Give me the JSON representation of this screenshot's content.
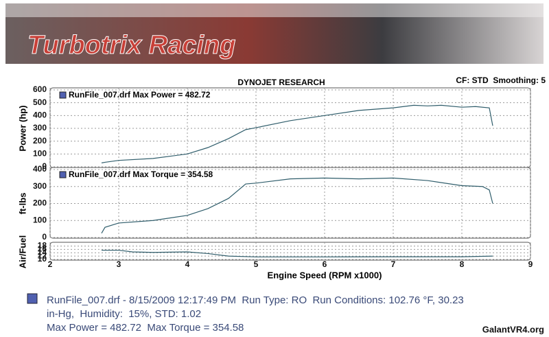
{
  "header": {
    "brand": "Turbotrix Racing",
    "title": "DYNOJET RESEARCH",
    "settings": "CF: STD  Smoothing: 5"
  },
  "chart_data": [
    {
      "type": "line",
      "y_label": "Power (hp)",
      "series": [
        {
          "name": "RunFile_007.drf Max Power = 482.72",
          "color": "#2f5d6b",
          "x": [
            2.75,
            2.8,
            3.0,
            3.5,
            4.0,
            4.3,
            4.6,
            4.85,
            5.0,
            5.5,
            6.0,
            6.5,
            7.0,
            7.3,
            7.5,
            7.7,
            8.0,
            8.2,
            8.4,
            8.45
          ],
          "values": [
            30,
            35,
            50,
            65,
            100,
            150,
            220,
            290,
            305,
            360,
            400,
            440,
            460,
            480,
            475,
            480,
            465,
            470,
            460,
            320
          ]
        }
      ],
      "ylim": [
        0,
        600
      ],
      "yticks": [
        0,
        100,
        200,
        300,
        400,
        500,
        600
      ]
    },
    {
      "type": "line",
      "y_label": "ft-lbs",
      "series": [
        {
          "name": "RunFile_007.drf Max Torque = 354.58",
          "color": "#2f5d6b",
          "x": [
            2.75,
            2.8,
            3.0,
            3.5,
            4.0,
            4.3,
            4.6,
            4.85,
            5.0,
            5.5,
            6.0,
            6.5,
            7.0,
            7.5,
            8.0,
            8.3,
            8.4,
            8.45
          ],
          "values": [
            25,
            60,
            85,
            100,
            130,
            170,
            230,
            315,
            320,
            345,
            350,
            345,
            350,
            335,
            305,
            300,
            280,
            200
          ]
        }
      ],
      "ylim": [
        0,
        400
      ],
      "yticks": [
        0,
        100,
        200,
        300,
        400
      ]
    },
    {
      "type": "line",
      "y_label": "Air/Fuel",
      "x_label": "Engine Speed (RPM x1000)",
      "series": [
        {
          "color": "#2f5d6b",
          "x": [
            2.75,
            3.0,
            3.2,
            3.5,
            4.0,
            4.3,
            4.6,
            5.0,
            6.0,
            7.0,
            8.0,
            8.45
          ],
          "values": [
            15.5,
            15.5,
            14.5,
            14.2,
            14.5,
            13.5,
            12,
            11.5,
            11.5,
            11.6,
            11.6,
            12
          ]
        }
      ],
      "ylim": [
        10,
        19
      ],
      "yticks": [
        10,
        12,
        14,
        16,
        18
      ],
      "xlim": [
        2,
        9
      ],
      "xticks": [
        2,
        3,
        4,
        5,
        6,
        7,
        8,
        9
      ]
    }
  ],
  "footer": {
    "lines": [
      "RunFile_007.drf - 8/15/2009 12:17:49 PM  Run Type: RO  Run Conditions: 102.76 °F, 30.23",
      "in-Hg,  Humidity:  15%, STD: 1.02",
      "Max Power = 482.72  Max Torque = 354.58"
    ],
    "watermark": "GalantVR4.org"
  }
}
